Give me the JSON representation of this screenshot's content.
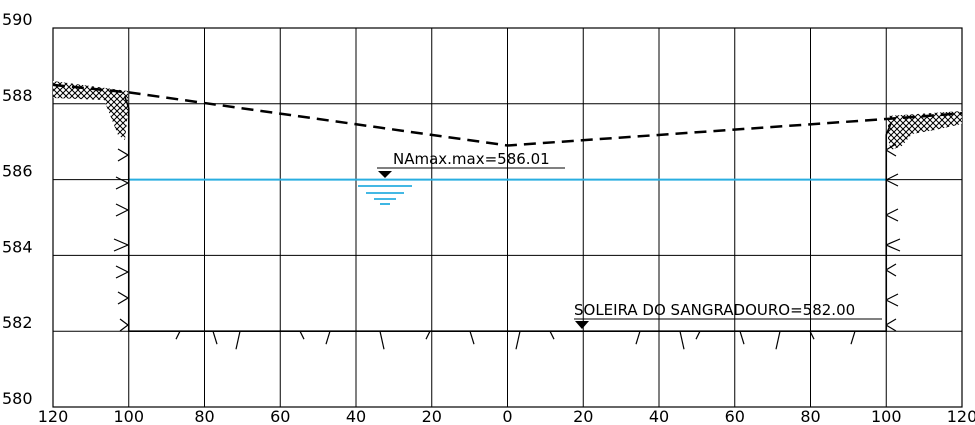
{
  "diagram": {
    "x_ticks": [
      "120",
      "100",
      "80",
      "60",
      "40",
      "20",
      "0",
      "20",
      "40",
      "60",
      "80",
      "100",
      "120"
    ],
    "y_ticks": [
      "590",
      "588",
      "586",
      "584",
      "582",
      "580"
    ],
    "water_level_label": "NAmax.max=586.01",
    "water_level": 586.0,
    "spillway_sill_label": "SOLEIRA DO SANGRADOURO=582.00",
    "spillway_sill": 582.0,
    "terrain_line": [
      [
        -120,
        588.5
      ],
      [
        -100,
        588.3
      ],
      [
        0,
        586.9
      ],
      [
        100,
        587.6
      ],
      [
        120,
        587.75
      ]
    ],
    "channel": {
      "left_bank": -100,
      "right_bank": 100,
      "bottom": 582.0
    },
    "colors": {
      "grid": "#000000",
      "water": "#29aee0",
      "line": "#000000"
    }
  }
}
